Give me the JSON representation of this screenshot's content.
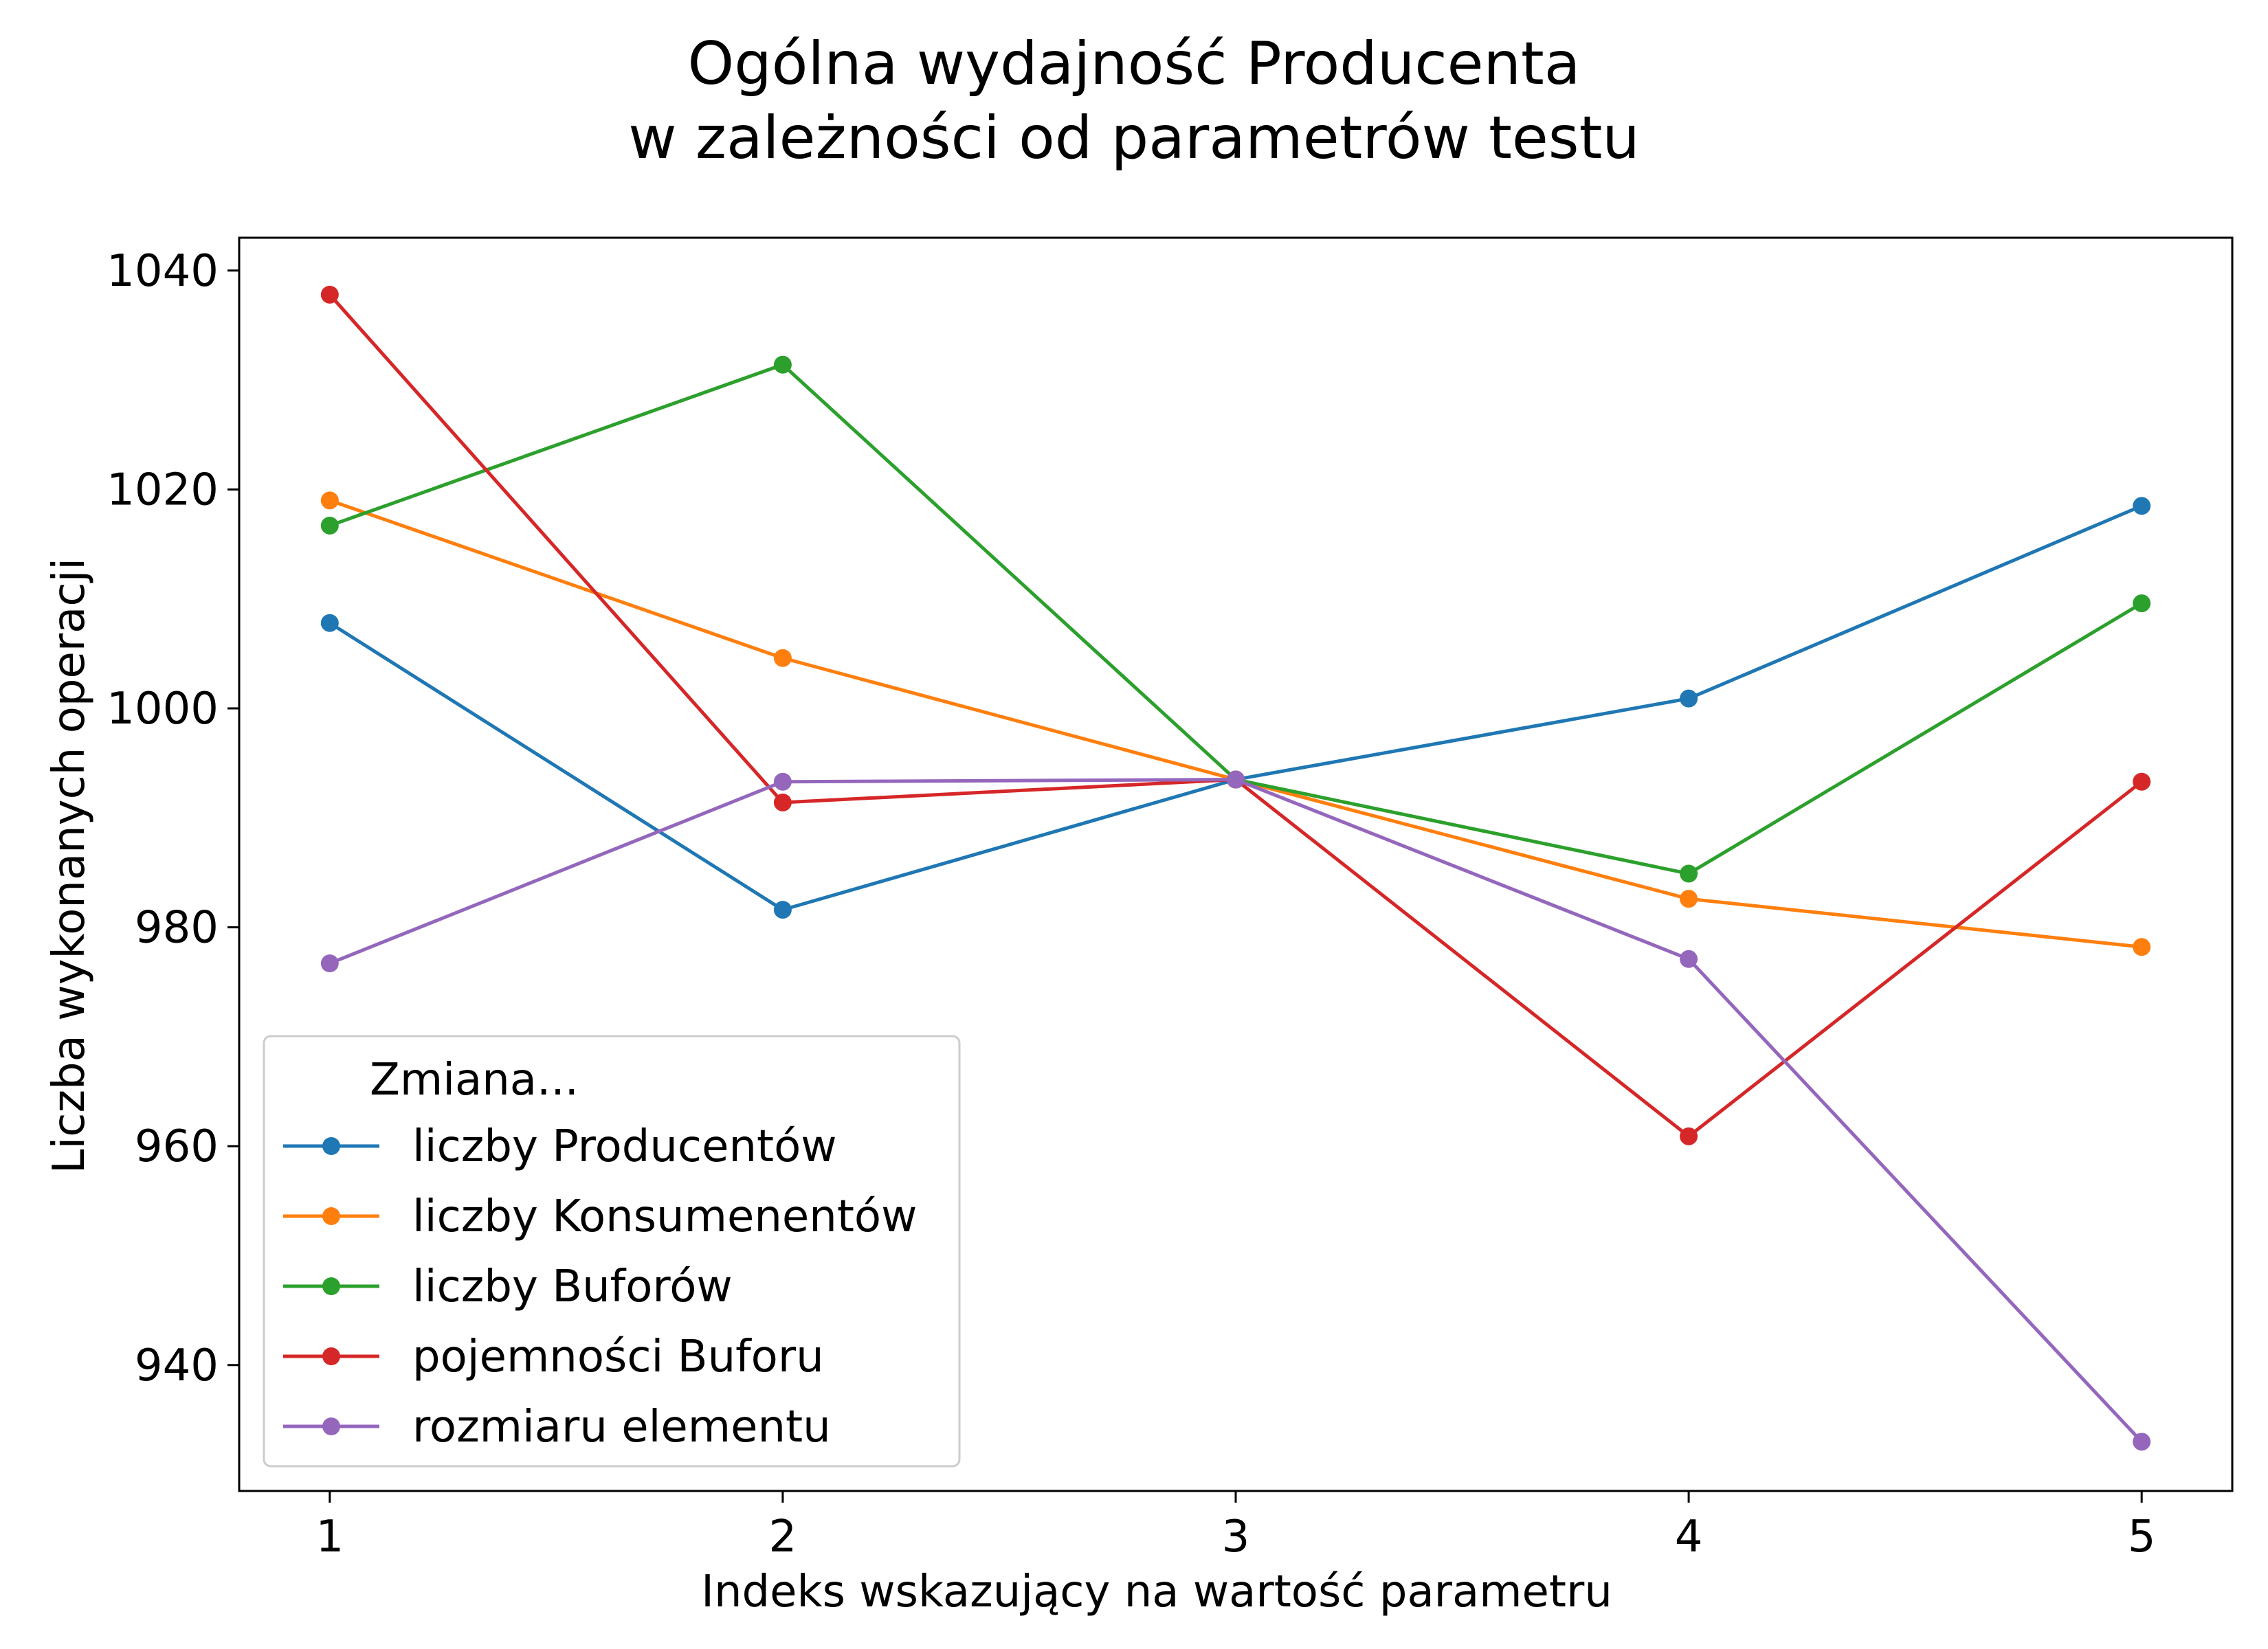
{
  "chart_data": {
    "type": "line",
    "title": [
      "Ogólna wydajność Producenta",
      "w zależności od parametrów testu"
    ],
    "xlabel": "Indeks wskazujący na wartość parametru",
    "ylabel": "Liczba wykonanych operacji",
    "x": [
      1,
      2,
      3,
      4,
      5
    ],
    "xticks": [
      "1",
      "2",
      "3",
      "4",
      "5"
    ],
    "yticks": [
      940,
      960,
      980,
      1000,
      1020,
      1040
    ],
    "xlim": [
      0.8,
      5.2
    ],
    "ylim": [
      928.5,
      1043
    ],
    "grid": false,
    "legend": {
      "title": "Zmiana...",
      "placement": "lower-left"
    },
    "series": [
      {
        "name": "liczby Producentów",
        "color": "#1f77b4",
        "values": [
          1007.8,
          981.6,
          993.5,
          1000.9,
          1018.5
        ]
      },
      {
        "name": "liczby Konsumenentów",
        "color": "#ff7f0e",
        "values": [
          1019.0,
          1004.6,
          993.5,
          982.6,
          978.2
        ]
      },
      {
        "name": "liczby Buforów",
        "color": "#2ca02c",
        "values": [
          1016.7,
          1031.4,
          993.5,
          984.9,
          1009.6
        ]
      },
      {
        "name": "pojemności Buforu",
        "color": "#d62728",
        "values": [
          1037.8,
          991.4,
          993.5,
          960.9,
          993.3
        ]
      },
      {
        "name": "rozmiaru elementu",
        "color": "#9467bd",
        "values": [
          976.7,
          993.3,
          993.5,
          977.1,
          933.0
        ]
      }
    ]
  }
}
